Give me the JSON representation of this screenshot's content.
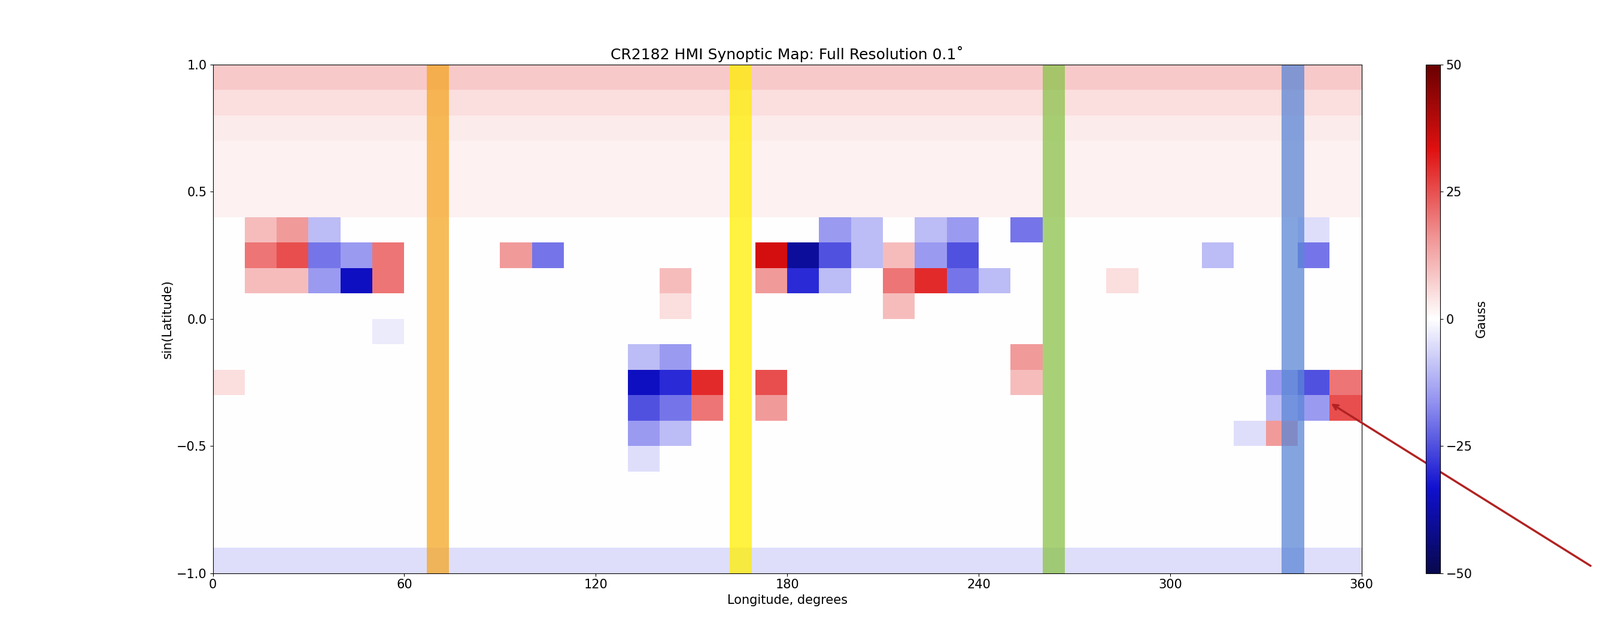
{
  "chart_data": {
    "type": "heatmap",
    "title": "CR2182 HMI Synoptic Map: Full Resolution 0.1˚",
    "x_label": "Longitude, degrees",
    "y_label": "sin(Latitude)",
    "xlim": [
      0,
      360
    ],
    "ylim": [
      -1.0,
      1.0
    ],
    "xticks": [
      0,
      60,
      120,
      180,
      240,
      300,
      360
    ],
    "yticks": [
      {
        "value": -1.0,
        "label": "−1.0"
      },
      {
        "value": -0.5,
        "label": "−0.5"
      },
      {
        "value": 0.0,
        "label": "0.0"
      },
      {
        "value": 0.5,
        "label": "0.5"
      },
      {
        "value": 1.0,
        "label": "1.0"
      }
    ],
    "x_edges": [
      0,
      10,
      20,
      30,
      40,
      50,
      60,
      70,
      80,
      90,
      100,
      110,
      120,
      130,
      140,
      150,
      160,
      170,
      180,
      190,
      200,
      210,
      220,
      230,
      240,
      250,
      260,
      270,
      280,
      290,
      300,
      310,
      320,
      330,
      340,
      350,
      360
    ],
    "y_edges": [
      -1.0,
      -0.9,
      -0.8,
      -0.7,
      -0.6,
      -0.5,
      -0.4,
      -0.3,
      -0.2,
      -0.1,
      0.0,
      0.1,
      0.2,
      0.3,
      0.4,
      0.5,
      0.6,
      0.7,
      0.8,
      0.9,
      1.0
    ],
    "cells": [
      [
        -5,
        -5,
        -5,
        -5,
        -5,
        -5,
        -5,
        -5,
        -5,
        -5,
        -5,
        -5,
        -5,
        -5,
        -5,
        -5,
        -5,
        -5,
        -5,
        -5,
        -5,
        -5,
        -5,
        -5,
        -5,
        -5,
        -5,
        -5,
        -5,
        -5,
        -5,
        -5,
        -5,
        -5,
        -5,
        -5
      ],
      [
        0,
        0,
        0,
        0,
        0,
        0,
        0,
        0,
        0,
        0,
        0,
        0,
        0,
        0,
        0,
        0,
        0,
        0,
        0,
        0,
        0,
        0,
        0,
        0,
        0,
        0,
        0,
        0,
        0,
        0,
        0,
        0,
        0,
        0,
        0,
        0
      ],
      [
        0,
        0,
        0,
        0,
        0,
        0,
        0,
        0,
        0,
        0,
        0,
        0,
        0,
        0,
        0,
        0,
        0,
        0,
        0,
        0,
        0,
        0,
        0,
        0,
        0,
        0,
        0,
        0,
        0,
        0,
        0,
        0,
        0,
        0,
        0,
        0
      ],
      [
        0,
        0,
        0,
        0,
        0,
        0,
        0,
        0,
        0,
        0,
        0,
        0,
        0,
        0,
        0,
        0,
        0,
        0,
        0,
        0,
        0,
        0,
        0,
        0,
        0,
        0,
        0,
        0,
        0,
        0,
        0,
        0,
        0,
        0,
        0,
        0
      ],
      [
        0,
        0,
        0,
        0,
        0,
        0,
        0,
        0,
        0,
        0,
        0,
        0,
        0,
        -5,
        0,
        0,
        0,
        0,
        0,
        0,
        0,
        0,
        0,
        0,
        0,
        0,
        0,
        0,
        0,
        0,
        0,
        0,
        0,
        0,
        0,
        0
      ],
      [
        0,
        0,
        0,
        0,
        0,
        0,
        0,
        0,
        0,
        0,
        0,
        0,
        0,
        -15,
        -10,
        0,
        0,
        0,
        0,
        0,
        0,
        0,
        0,
        0,
        0,
        0,
        0,
        0,
        0,
        0,
        0,
        0,
        -5,
        15,
        0,
        0
      ],
      [
        0,
        0,
        0,
        0,
        0,
        0,
        0,
        0,
        0,
        0,
        0,
        0,
        0,
        -25,
        -20,
        20,
        0,
        15,
        0,
        0,
        0,
        0,
        0,
        0,
        0,
        0,
        0,
        0,
        0,
        0,
        0,
        0,
        0,
        -10,
        -15,
        25
      ],
      [
        5,
        0,
        0,
        0,
        0,
        0,
        0,
        0,
        0,
        0,
        0,
        0,
        0,
        -35,
        -30,
        30,
        0,
        25,
        0,
        0,
        0,
        0,
        0,
        0,
        0,
        10,
        0,
        0,
        0,
        0,
        0,
        0,
        0,
        -15,
        -25,
        20
      ],
      [
        0,
        0,
        0,
        0,
        0,
        0,
        0,
        0,
        0,
        0,
        0,
        0,
        0,
        -10,
        -15,
        0,
        0,
        0,
        0,
        0,
        0,
        0,
        0,
        0,
        0,
        15,
        0,
        0,
        0,
        0,
        0,
        0,
        0,
        0,
        0,
        0
      ],
      [
        0,
        0,
        0,
        0,
        0,
        -3,
        0,
        0,
        0,
        0,
        0,
        0,
        0,
        0,
        0,
        0,
        0,
        0,
        0,
        0,
        0,
        0,
        0,
        0,
        0,
        0,
        0,
        0,
        0,
        0,
        0,
        0,
        0,
        0,
        0,
        0
      ],
      [
        0,
        0,
        0,
        0,
        0,
        0,
        0,
        0,
        0,
        0,
        0,
        0,
        0,
        0,
        5,
        0,
        0,
        0,
        0,
        0,
        0,
        10,
        0,
        0,
        0,
        0,
        0,
        0,
        0,
        0,
        0,
        0,
        0,
        0,
        0,
        0
      ],
      [
        0,
        10,
        10,
        -15,
        -35,
        20,
        0,
        0,
        0,
        0,
        0,
        0,
        0,
        0,
        10,
        0,
        0,
        15,
        -30,
        -10,
        0,
        20,
        30,
        -20,
        -10,
        0,
        0,
        0,
        5,
        0,
        0,
        0,
        0,
        0,
        0,
        0
      ],
      [
        0,
        20,
        25,
        -20,
        -15,
        20,
        0,
        0,
        0,
        15,
        -20,
        0,
        0,
        0,
        0,
        0,
        0,
        35,
        -40,
        -25,
        -10,
        10,
        -15,
        -25,
        0,
        0,
        0,
        0,
        0,
        0,
        0,
        -10,
        0,
        0,
        -20,
        0
      ],
      [
        0,
        10,
        15,
        -10,
        0,
        0,
        0,
        0,
        0,
        0,
        0,
        0,
        0,
        0,
        0,
        0,
        0,
        0,
        0,
        -15,
        -10,
        0,
        -10,
        -15,
        0,
        -20,
        0,
        0,
        0,
        0,
        0,
        0,
        0,
        0,
        -5,
        0
      ],
      [
        2,
        2,
        2,
        2,
        2,
        2,
        2,
        2,
        2,
        2,
        2,
        2,
        2,
        2,
        2,
        2,
        2,
        2,
        2,
        2,
        2,
        2,
        2,
        2,
        2,
        2,
        2,
        2,
        2,
        2,
        2,
        2,
        2,
        2,
        2,
        2
      ],
      [
        2,
        2,
        2,
        2,
        2,
        2,
        2,
        2,
        2,
        2,
        2,
        2,
        2,
        2,
        2,
        2,
        2,
        2,
        2,
        2,
        2,
        2,
        2,
        2,
        2,
        2,
        2,
        2,
        2,
        2,
        2,
        2,
        2,
        2,
        2,
        2
      ],
      [
        2,
        2,
        2,
        2,
        2,
        2,
        2,
        2,
        2,
        2,
        2,
        2,
        2,
        2,
        2,
        2,
        2,
        2,
        2,
        2,
        2,
        2,
        2,
        2,
        2,
        2,
        2,
        2,
        2,
        2,
        2,
        2,
        2,
        2,
        2,
        2
      ],
      [
        3,
        3,
        3,
        3,
        3,
        3,
        3,
        3,
        3,
        3,
        3,
        3,
        3,
        3,
        3,
        3,
        3,
        3,
        3,
        3,
        3,
        3,
        3,
        3,
        3,
        3,
        3,
        3,
        3,
        3,
        3,
        3,
        3,
        3,
        3,
        3
      ],
      [
        5,
        5,
        5,
        5,
        5,
        5,
        5,
        5,
        5,
        5,
        5,
        5,
        5,
        5,
        5,
        5,
        5,
        5,
        5,
        5,
        5,
        5,
        5,
        5,
        5,
        5,
        5,
        5,
        5,
        5,
        5,
        5,
        5,
        5,
        5,
        5
      ],
      [
        8,
        8,
        8,
        8,
        8,
        8,
        8,
        8,
        8,
        8,
        8,
        8,
        8,
        8,
        8,
        8,
        8,
        8,
        8,
        8,
        8,
        8,
        8,
        8,
        8,
        8,
        8,
        8,
        8,
        8,
        8,
        8,
        8,
        8,
        8,
        8
      ]
    ],
    "colorbar": {
      "label": "Gauss",
      "range": [
        -50,
        50
      ],
      "ticks": [
        {
          "value": -50,
          "label": "−50"
        },
        {
          "value": -25,
          "label": "−25"
        },
        0,
        25,
        50
      ]
    },
    "bands": [
      {
        "range": [
          67,
          74
        ],
        "color": "#f5a623"
      },
      {
        "range": [
          162,
          169
        ],
        "color": "#ffee00"
      },
      {
        "range": [
          260,
          267
        ],
        "color": "#8bc34a"
      },
      {
        "range": [
          335,
          342
        ],
        "color": "#5b86d6"
      }
    ],
    "arrow": {
      "x": 350,
      "y": -0.33,
      "color": "#b22222"
    }
  }
}
